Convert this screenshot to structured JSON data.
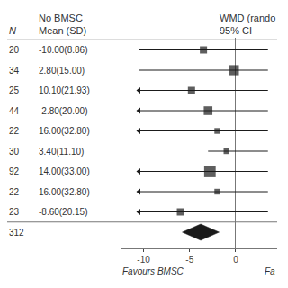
{
  "chart_data": {
    "type": "forest",
    "headers": {
      "n": "N",
      "group": [
        "No BMSC",
        "Mean (SD)"
      ],
      "effect": [
        "WMD (rando",
        "95% CI"
      ]
    },
    "studies": [
      {
        "n": 20,
        "label": "-10.00(8.86)",
        "wmd": -3.5,
        "ci_low": -10.5,
        "ci_high": 3.5,
        "arrow_left": false,
        "size": 5
      },
      {
        "n": 34,
        "label": "2.80(15.00)",
        "wmd": -0.2,
        "ci_low": -10.5,
        "ci_high": 3.5,
        "arrow_left": false,
        "size": 7
      },
      {
        "n": 25,
        "label": "10.10(21.93)",
        "wmd": -4.8,
        "ci_low": -10.5,
        "ci_high": 3.5,
        "arrow_left": true,
        "size": 5
      },
      {
        "n": 44,
        "label": "-2.80(20.00)",
        "wmd": -3.0,
        "ci_low": -10.5,
        "ci_high": 3.5,
        "arrow_left": true,
        "size": 6
      },
      {
        "n": 22,
        "label": "16.00(32.80)",
        "wmd": -2.0,
        "ci_low": -10.5,
        "ci_high": 3.5,
        "arrow_left": true,
        "size": 4
      },
      {
        "n": 30,
        "label": "3.40(11.10)",
        "wmd": -1.0,
        "ci_low": -3.0,
        "ci_high": 3.5,
        "arrow_left": false,
        "size": 4
      },
      {
        "n": 92,
        "label": "14.00(33.00)",
        "wmd": -2.8,
        "ci_low": -10.5,
        "ci_high": 3.5,
        "arrow_left": true,
        "size": 8
      },
      {
        "n": 22,
        "label": "16.00(32.80)",
        "wmd": -2.0,
        "ci_low": -10.5,
        "ci_high": 3.5,
        "arrow_left": true,
        "size": 4
      },
      {
        "n": 23,
        "label": "-8.60(20.15)",
        "wmd": -6.0,
        "ci_low": -10.5,
        "ci_high": 3.5,
        "arrow_left": true,
        "size": 5
      }
    ],
    "overall": {
      "n": 312,
      "wmd": -3.8,
      "ci_low": -5.8,
      "ci_high": -1.8
    },
    "xlim": [
      -12.5,
      4.5
    ],
    "xticks": [
      -10,
      -5,
      0
    ],
    "xlabel_left": "Favours BMSC",
    "xlabel_right": "Fa",
    "color": "#1a1a1a",
    "grid": false,
    "tick_labels": "x"
  }
}
